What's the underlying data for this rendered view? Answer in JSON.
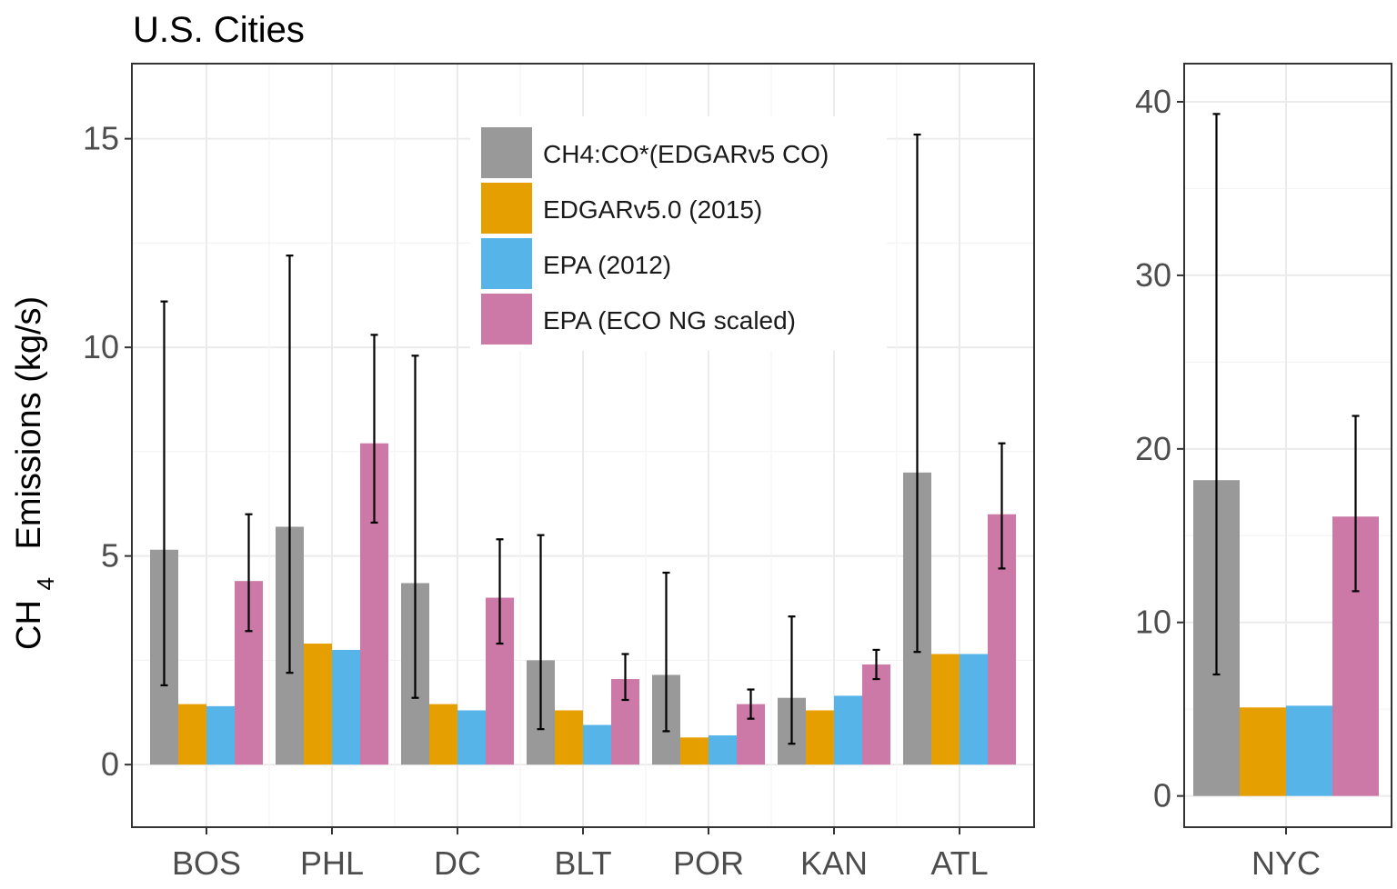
{
  "chart_data": [
    {
      "type": "bar",
      "title": "U.S. Cities",
      "ylabel_main": "CH",
      "ylabel_sub": "4",
      "ylabel_rest": "Emissions (kg/s)",
      "ylim": [
        -1.5,
        16.8
      ],
      "yticks": [
        0,
        5,
        10,
        15
      ],
      "ytick_labels": [
        "0",
        "5",
        "10",
        "15"
      ],
      "categories": [
        "BOS",
        "PHL",
        "DC",
        "BLT",
        "POR",
        "KAN",
        "ATL"
      ],
      "legend": {
        "position": "top-center",
        "entries": [
          {
            "label": "CH4:CO*(EDGARv5 CO)",
            "color": "#999999"
          },
          {
            "label": "EDGARv5.0 (2015)",
            "color": "#E69F00"
          },
          {
            "label": "EPA (2012)",
            "color": "#56B4E9"
          },
          {
            "label": "EPA (ECO NG scaled)",
            "color": "#CC79A7"
          }
        ]
      },
      "series": [
        {
          "name": "CH4:CO*(EDGARv5 CO)",
          "color": "#999999",
          "values": [
            5.15,
            5.7,
            4.35,
            2.5,
            2.15,
            1.6,
            7.0
          ],
          "err_low": [
            1.9,
            2.2,
            1.6,
            0.85,
            0.8,
            0.5,
            2.7
          ],
          "err_high": [
            11.1,
            12.2,
            9.8,
            5.5,
            4.6,
            3.55,
            15.1
          ]
        },
        {
          "name": "EDGARv5.0 (2015)",
          "color": "#E69F00",
          "values": [
            1.45,
            2.9,
            1.45,
            1.3,
            0.65,
            1.3,
            2.65
          ]
        },
        {
          "name": "EPA (2012)",
          "color": "#56B4E9",
          "values": [
            1.4,
            2.75,
            1.3,
            0.95,
            0.7,
            1.65,
            2.65
          ]
        },
        {
          "name": "EPA (ECO NG scaled)",
          "color": "#CC79A7",
          "values": [
            4.4,
            7.7,
            4.0,
            2.05,
            1.45,
            2.4,
            6.0
          ],
          "err_low": [
            3.2,
            5.8,
            2.9,
            1.55,
            1.1,
            2.05,
            4.7
          ],
          "err_high": [
            6.0,
            10.3,
            5.4,
            2.65,
            1.8,
            2.75,
            7.7
          ]
        }
      ]
    },
    {
      "type": "bar",
      "title": "",
      "ylim": [
        -1.8,
        42.2
      ],
      "yticks": [
        0,
        10,
        20,
        30,
        40
      ],
      "ytick_labels": [
        "0",
        "10",
        "20",
        "30",
        "40"
      ],
      "categories": [
        "NYC"
      ],
      "series": [
        {
          "name": "CH4:CO*(EDGARv5 CO)",
          "color": "#999999",
          "values": [
            18.2
          ],
          "err_low": [
            7.0
          ],
          "err_high": [
            39.3
          ]
        },
        {
          "name": "EDGARv5.0 (2015)",
          "color": "#E69F00",
          "values": [
            5.1
          ]
        },
        {
          "name": "EPA (2012)",
          "color": "#56B4E9",
          "values": [
            5.2
          ]
        },
        {
          "name": "EPA (ECO NG scaled)",
          "color": "#CC79A7",
          "values": [
            16.1
          ],
          "err_low": [
            11.8
          ],
          "err_high": [
            21.9
          ]
        }
      ]
    }
  ]
}
